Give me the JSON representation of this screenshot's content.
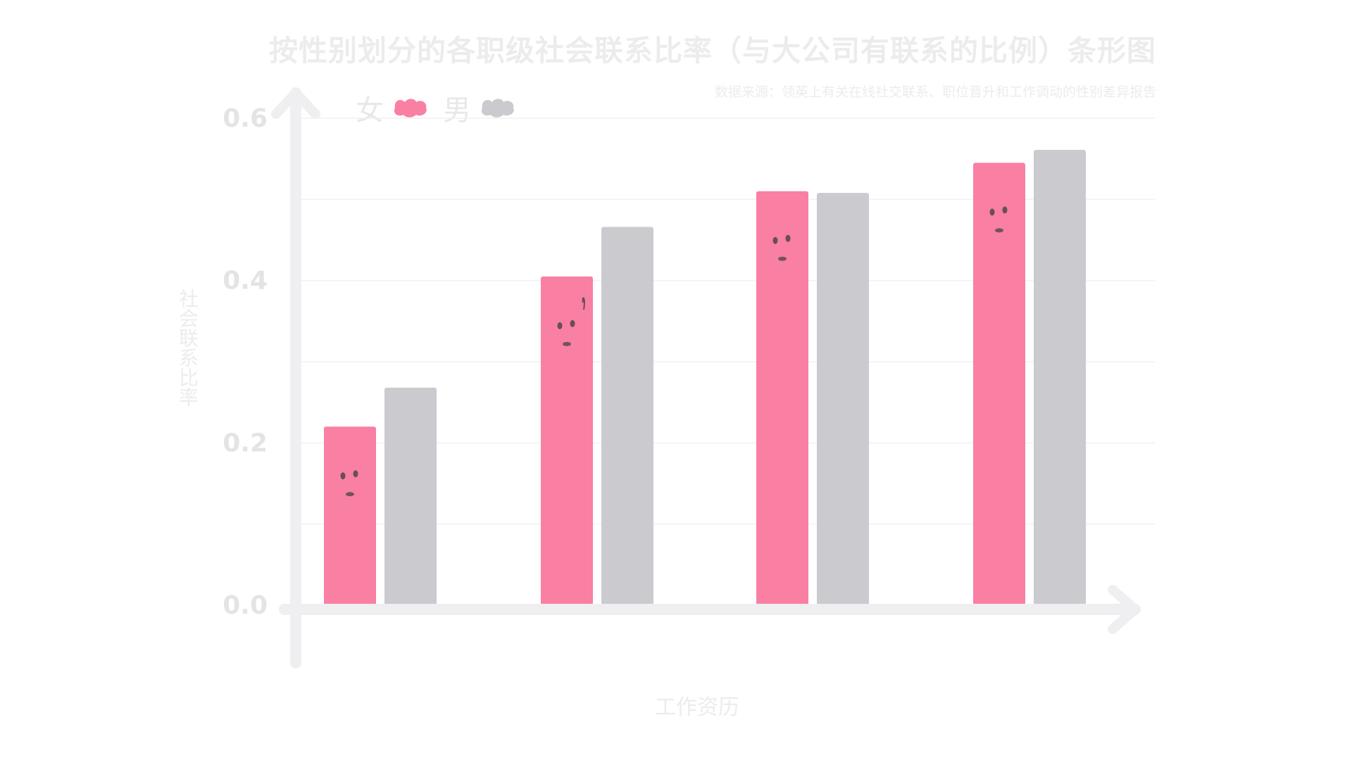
{
  "chart_data": {
    "type": "bar",
    "title": "按性别划分的各职级社会联系比率（与大公司有联系的比例）条形图",
    "subtitle": "数据来源：领英上有关在线社交联系、职位晋升和工作调动的性别差异报告",
    "xlabel": "工作资历",
    "ylabel": "社会联系比率",
    "categories": [
      "",
      "",
      "",
      ""
    ],
    "series": [
      {
        "name": "女",
        "color": "#f97fa3",
        "values": [
          0.22,
          0.405,
          0.51,
          0.545
        ]
      },
      {
        "name": "男",
        "color": "#cacacf",
        "values": [
          0.268,
          0.466,
          0.508,
          0.561
        ]
      }
    ],
    "ylim": [
      0,
      0.6
    ],
    "yticks": [
      "0.0",
      "0.2",
      "0.4",
      "0.6"
    ],
    "grid": true,
    "legend_position": "top-left"
  },
  "colors": {
    "axis": "#efeff1",
    "grid": "#f1f1f3",
    "tick_text": "#e4e4e6",
    "face": "#444444"
  }
}
